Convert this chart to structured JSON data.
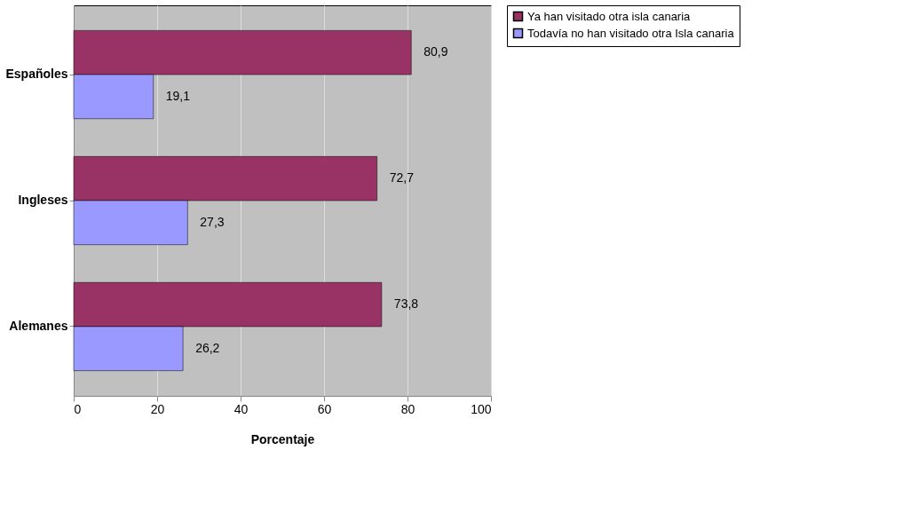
{
  "chart_data": {
    "type": "bar",
    "orientation": "horizontal",
    "xlabel": "Porcentaje",
    "categories": [
      "Españoles",
      "Ingleses",
      "Alemanes"
    ],
    "series": [
      {
        "name": "Ya han visitado otra isla canaria",
        "color": "#993366",
        "values": [
          80.9,
          72.7,
          73.8
        ],
        "value_labels": [
          "80,9",
          "72,7",
          "73,8"
        ]
      },
      {
        "name": "Todavía no han visitado otra Isla canaria",
        "color": "#9999ff",
        "values": [
          19.1,
          27.3,
          26.2
        ],
        "value_labels": [
          "19,1",
          "27,3",
          "26,2"
        ]
      }
    ],
    "xlim": [
      0,
      100
    ],
    "xticks": [
      0,
      20,
      40,
      60,
      80,
      100
    ],
    "grid": "x",
    "legend": "right"
  }
}
